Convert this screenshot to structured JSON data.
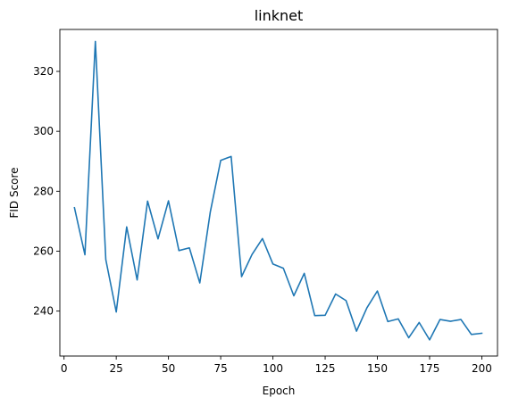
{
  "chart_data": {
    "type": "line",
    "title": "linknet",
    "xlabel": "Epoch",
    "ylabel": "FID Score",
    "xlim": [
      -2,
      207.5
    ],
    "ylim": [
      225,
      334
    ],
    "xticks": [
      0,
      25,
      50,
      75,
      100,
      125,
      150,
      175,
      200
    ],
    "yticks": [
      240,
      260,
      280,
      300,
      320
    ],
    "grid": false,
    "legend": "none",
    "series": [
      {
        "color": "#1f77b4",
        "x": [
          5,
          10,
          15,
          20,
          25,
          30,
          35,
          40,
          45,
          50,
          55,
          60,
          65,
          70,
          75,
          80,
          85,
          90,
          95,
          100,
          105,
          110,
          115,
          120,
          125,
          130,
          135,
          140,
          145,
          150,
          155,
          160,
          165,
          170,
          175,
          180,
          185,
          190,
          195,
          200
        ],
        "y": [
          274.5,
          258.8,
          330.0,
          257.2,
          239.7,
          268.1,
          250.4,
          276.7,
          264.1,
          276.8,
          260.2,
          261.1,
          249.4,
          273.0,
          290.3,
          291.6,
          251.5,
          258.9,
          264.2,
          255.7,
          254.3,
          245.1,
          252.6,
          238.5,
          238.6,
          245.7,
          243.5,
          233.3,
          241.1,
          246.7,
          236.5,
          237.4,
          231.1,
          236.2,
          230.4,
          237.2,
          236.6,
          237.2,
          232.2,
          232.6
        ]
      }
    ]
  }
}
